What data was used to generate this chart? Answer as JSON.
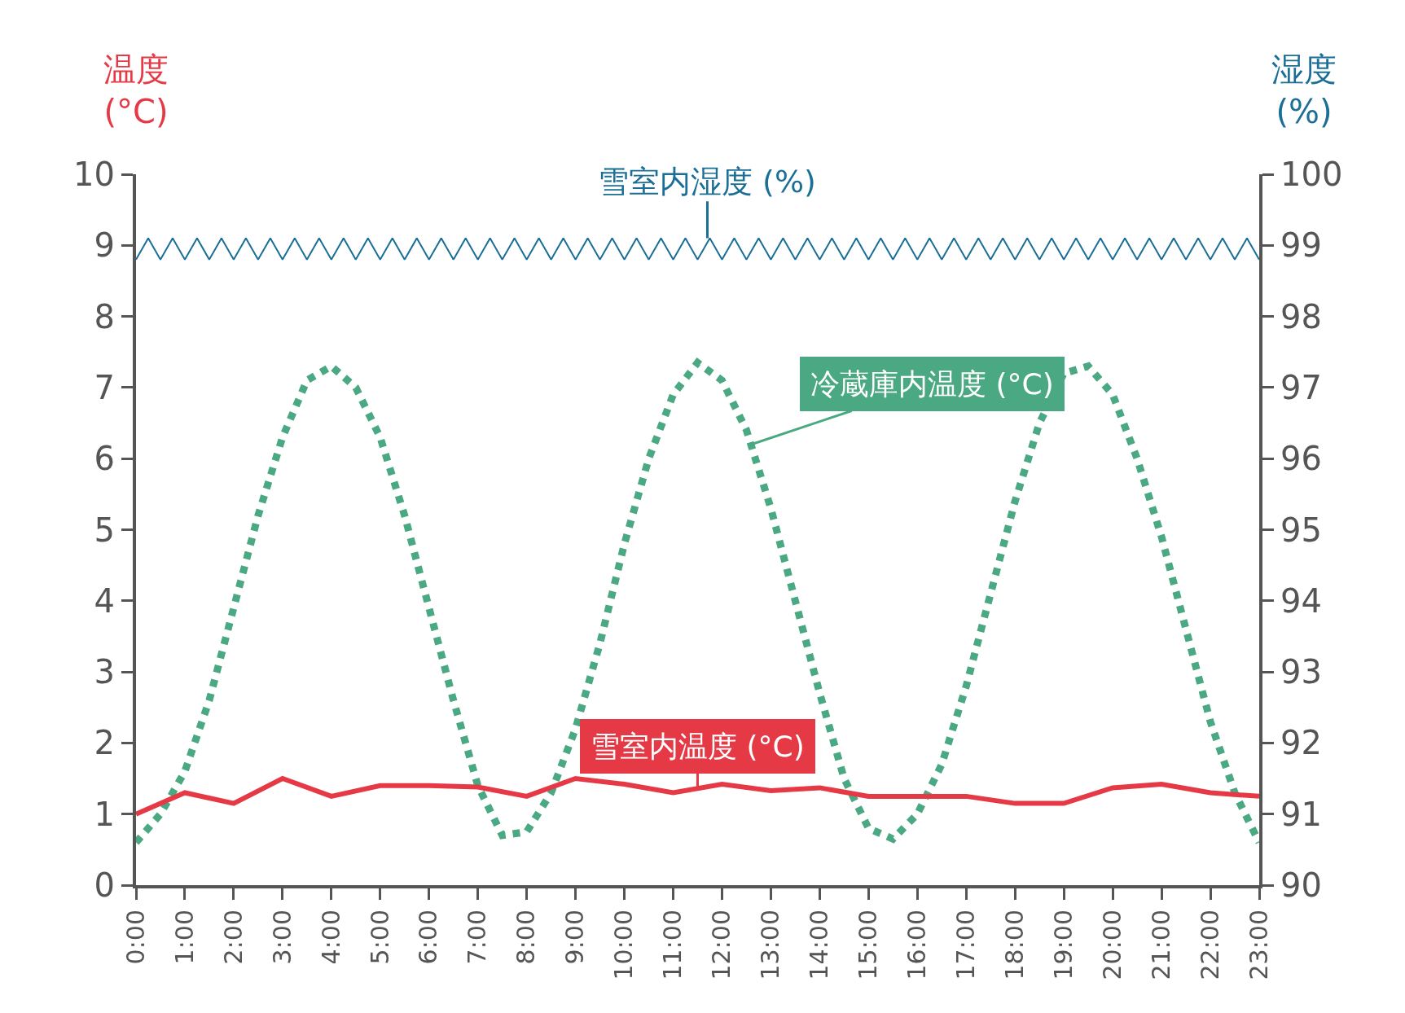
{
  "chart_data": {
    "type": "line",
    "ylabel": "温度\n(°C)",
    "y2label": "湿度\n(%)",
    "xlim": [
      0,
      23
    ],
    "xticks": [
      {
        "value": 0,
        "label": "0:00"
      },
      {
        "value": 1,
        "label": "1:00"
      },
      {
        "value": 2,
        "label": "2:00"
      },
      {
        "value": 3,
        "label": "3:00"
      },
      {
        "value": 4,
        "label": "4:00"
      },
      {
        "value": 5,
        "label": "5:00"
      },
      {
        "value": 6,
        "label": "6:00"
      },
      {
        "value": 7,
        "label": "7:00"
      },
      {
        "value": 8,
        "label": "8:00"
      },
      {
        "value": 9,
        "label": "9:00"
      },
      {
        "value": 10,
        "label": "10:00"
      },
      {
        "value": 11,
        "label": "11:00"
      },
      {
        "value": 12,
        "label": "12:00"
      },
      {
        "value": 13,
        "label": "13:00"
      },
      {
        "value": 14,
        "label": "14:00"
      },
      {
        "value": 15,
        "label": "15:00"
      },
      {
        "value": 16,
        "label": "16:00"
      },
      {
        "value": 17,
        "label": "17:00"
      },
      {
        "value": 18,
        "label": "18:00"
      },
      {
        "value": 19,
        "label": "19:00"
      },
      {
        "value": 20,
        "label": "20:00"
      },
      {
        "value": 21,
        "label": "21:00"
      },
      {
        "value": 22,
        "label": "22:00"
      },
      {
        "value": 23,
        "label": "23:00"
      }
    ],
    "ylim": [
      0,
      10
    ],
    "yticks": [
      0,
      1,
      2,
      3,
      4,
      5,
      6,
      7,
      8,
      9,
      10
    ],
    "y2lim": [
      90,
      100
    ],
    "y2ticks": [
      90,
      91,
      92,
      93,
      94,
      95,
      96,
      97,
      98,
      99,
      100
    ],
    "legend": false,
    "marker": "none",
    "series": [
      {
        "name": "雪室内湿度 (%)",
        "color": "#1b6f97",
        "axis": "y2",
        "line_style": "solid",
        "x": [
          0,
          0.25,
          0.5,
          0.75,
          1,
          1.25,
          1.5,
          1.75,
          2,
          2.25,
          2.5,
          2.75,
          3,
          3.25,
          3.5,
          3.75,
          4,
          4.25,
          4.5,
          4.75,
          5,
          5.25,
          5.5,
          5.75,
          6,
          6.25,
          6.5,
          6.75,
          7,
          7.25,
          7.5,
          7.75,
          8,
          8.25,
          8.5,
          8.75,
          9,
          9.25,
          9.5,
          9.75,
          10,
          10.25,
          10.5,
          10.75,
          11,
          11.25,
          11.5,
          11.75,
          12,
          12.25,
          12.5,
          12.75,
          13,
          13.25,
          13.5,
          13.75,
          14,
          14.25,
          14.5,
          14.75,
          15,
          15.25,
          15.5,
          15.75,
          16,
          16.25,
          16.5,
          16.75,
          17,
          17.25,
          17.5,
          17.75,
          18,
          18.25,
          18.5,
          18.75,
          19,
          19.25,
          19.5,
          19.75,
          20,
          20.25,
          20.5,
          20.75,
          21,
          21.25,
          21.5,
          21.75,
          22,
          22.25,
          22.5,
          22.75,
          23
        ],
        "values": [
          98.8,
          99.1,
          98.8,
          99.1,
          98.8,
          99.1,
          98.8,
          99.1,
          98.8,
          99.1,
          98.8,
          99.1,
          98.8,
          99.1,
          98.8,
          99.1,
          98.8,
          99.1,
          98.8,
          99.1,
          98.8,
          99.1,
          98.8,
          99.1,
          98.8,
          99.1,
          98.8,
          99.1,
          98.8,
          99.1,
          98.8,
          99.1,
          98.8,
          99.1,
          98.8,
          99.1,
          98.8,
          99.1,
          98.8,
          99.1,
          98.8,
          99.1,
          98.8,
          99.1,
          98.8,
          99.1,
          98.8,
          99.1,
          98.8,
          99.1,
          98.8,
          99.1,
          98.8,
          99.1,
          98.8,
          99.1,
          98.8,
          99.1,
          98.8,
          99.1,
          98.8,
          99.1,
          98.8,
          99.1,
          98.8,
          99.1,
          98.8,
          99.1,
          98.8,
          99.1,
          98.8,
          99.1,
          98.8,
          99.1,
          98.8,
          99.1,
          98.8,
          99.1,
          98.8,
          99.1,
          98.8,
          99.1,
          98.8,
          99.1,
          98.8,
          99.1,
          98.8,
          99.1,
          98.8,
          99.1,
          98.8,
          99.1,
          98.8
        ]
      },
      {
        "name": "冷蔵庫内温度 (°C)",
        "color": "#4aa882",
        "axis": "y",
        "line_style": "dotted",
        "x": [
          0,
          0.5,
          1,
          1.5,
          2,
          2.5,
          3,
          3.5,
          4,
          4.5,
          5,
          5.5,
          6,
          6.5,
          7,
          7.5,
          8,
          8.5,
          9,
          9.5,
          10,
          10.5,
          11,
          11.5,
          12,
          12.5,
          13,
          13.5,
          14,
          14.5,
          15,
          15.5,
          16,
          16.5,
          17,
          17.5,
          18,
          18.5,
          19,
          19.5,
          20,
          20.5,
          21,
          21.5,
          22,
          22.5,
          23
        ],
        "values": [
          0.6,
          1.0,
          1.6,
          2.6,
          3.9,
          5.2,
          6.3,
          7.1,
          7.3,
          7.0,
          6.3,
          5.2,
          3.9,
          2.6,
          1.4,
          0.7,
          0.75,
          1.3,
          2.2,
          3.4,
          4.8,
          6.0,
          6.9,
          7.35,
          7.1,
          6.4,
          5.3,
          4.0,
          2.7,
          1.5,
          0.8,
          0.65,
          1.0,
          1.7,
          2.8,
          4.1,
          5.4,
          6.5,
          7.2,
          7.3,
          6.9,
          6.0,
          4.9,
          3.6,
          2.3,
          1.3,
          0.6
        ]
      },
      {
        "name": "雪室内温度 (°C)",
        "color": "#e63946",
        "axis": "y",
        "line_style": "solid",
        "x": [
          0,
          1,
          2,
          3,
          4,
          5,
          6,
          7,
          8,
          9,
          10,
          11,
          12,
          13,
          14,
          15,
          16,
          17,
          18,
          19,
          20,
          21,
          22,
          23
        ],
        "values": [
          1.0,
          1.3,
          1.15,
          1.5,
          1.25,
          1.4,
          1.4,
          1.38,
          1.25,
          1.5,
          1.42,
          1.3,
          1.42,
          1.33,
          1.37,
          1.25,
          1.25,
          1.25,
          1.15,
          1.15,
          1.37,
          1.42,
          1.3,
          1.25
        ]
      }
    ]
  }
}
